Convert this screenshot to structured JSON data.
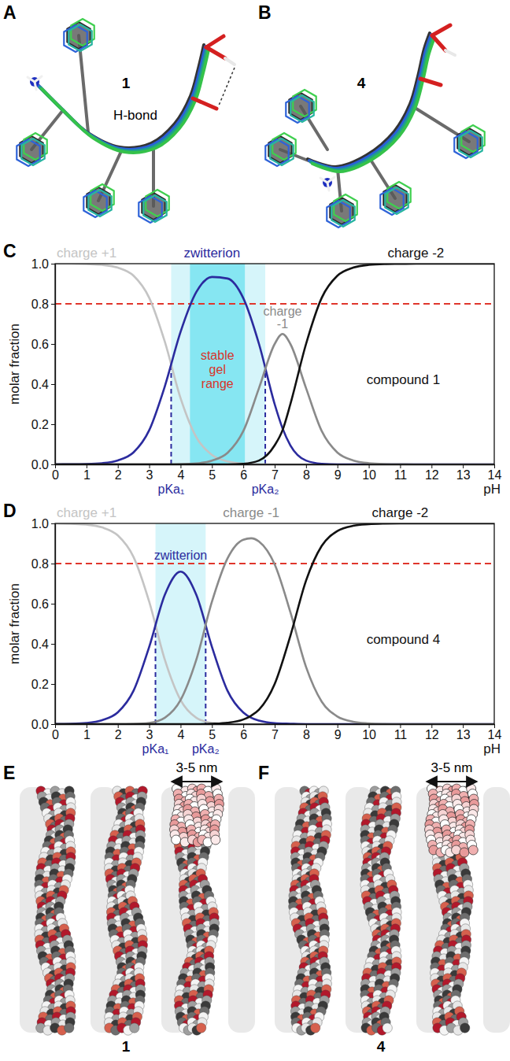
{
  "chart_data": [
    {
      "panel": "C",
      "type": "line",
      "xlabel": "pH",
      "ylabel": "molar fraction",
      "grid": false,
      "x": [
        0,
        0.5,
        1,
        1.5,
        2,
        2.5,
        3,
        3.5,
        4,
        4.5,
        5,
        5.5,
        6,
        6.5,
        7,
        7.25,
        7.5,
        8,
        8.5,
        9,
        9.5,
        10,
        10.5,
        11,
        11.5,
        12,
        12.5,
        13,
        13.5,
        14
      ],
      "xlim": [
        0,
        14
      ],
      "ylim": [
        0,
        1
      ],
      "xticks": [
        0,
        1,
        2,
        3,
        4,
        5,
        6,
        7,
        8,
        9,
        10,
        11,
        12,
        13,
        14
      ],
      "yticks": [
        {
          "value": 0,
          "label": "0.0"
        },
        {
          "value": 0.2,
          "label": "0.2"
        },
        {
          "value": 0.4,
          "label": "0.4"
        },
        {
          "value": 0.6,
          "label": "0.6"
        },
        {
          "value": 0.8,
          "label": "0.8"
        },
        {
          "value": 1,
          "label": "1.0"
        }
      ],
      "series": [
        {
          "name": "charge +1",
          "color": "#c4c4c4",
          "values": [
            1,
            1,
            0.998,
            0.994,
            0.98,
            0.94,
            0.83,
            0.61,
            0.33,
            0.136,
            0.047,
            0.015,
            0.004,
            0.001,
            0,
            0,
            0,
            0,
            0,
            0,
            0,
            0,
            0,
            0,
            0,
            0,
            0,
            0,
            0,
            0
          ]
        },
        {
          "name": "zwitterion",
          "color": "#2b2b9e",
          "values": [
            0,
            0.001,
            0.002,
            0.006,
            0.02,
            0.06,
            0.17,
            0.39,
            0.66,
            0.858,
            0.934,
            0.926,
            0.828,
            0.6,
            0.3,
            0.18,
            0.095,
            0.019,
            0.003,
            0,
            0,
            0,
            0,
            0,
            0,
            0,
            0,
            0,
            0,
            0
          ]
        },
        {
          "name": "charge -1",
          "color": "#8a8a8a",
          "values": [
            0,
            0,
            0,
            0,
            0,
            0,
            0,
            0,
            0.001,
            0.005,
            0.019,
            0.058,
            0.166,
            0.38,
            0.6,
            0.65,
            0.6,
            0.38,
            0.166,
            0.059,
            0.02,
            0.006,
            0.002,
            0.001,
            0,
            0,
            0,
            0,
            0,
            0
          ]
        },
        {
          "name": "charge -2",
          "color": "#111111",
          "values": [
            0,
            0,
            0,
            0,
            0,
            0,
            0,
            0,
            0,
            0,
            0,
            0,
            0.003,
            0.019,
            0.095,
            0.17,
            0.3,
            0.6,
            0.83,
            0.94,
            0.98,
            0.994,
            0.998,
            0.999,
            1,
            1,
            1,
            1,
            1,
            1
          ]
        }
      ],
      "shaded_ranges": [
        {
          "from": 3.7,
          "to": 6.7,
          "color": "#d6f5fa"
        },
        {
          "from": 4.3,
          "to": 6.05,
          "color": "#86e6f2",
          "text": "stable gel range"
        }
      ],
      "reference_lines": [
        {
          "y": 0.8,
          "color": "#e0362c",
          "line_style": "dashed"
        }
      ],
      "pka": [
        {
          "label": "pKa₁",
          "value": 3.7,
          "color": "#2b2b9e"
        },
        {
          "label": "pKa₂",
          "value": 6.7,
          "color": "#2b2b9e"
        }
      ],
      "annotations": [
        {
          "text": "compound 1",
          "x": 11.1,
          "y": 0.4
        }
      ]
    },
    {
      "panel": "D",
      "type": "line",
      "xlabel": "pH",
      "ylabel": "molar fraction",
      "grid": false,
      "x": [
        0,
        0.5,
        1,
        1.5,
        2,
        2.5,
        3,
        3.5,
        4,
        4.5,
        5,
        5.5,
        6,
        6.25,
        6.5,
        7,
        7.5,
        8,
        8.5,
        9,
        9.5,
        10,
        10.5,
        11,
        11.5,
        12,
        12.5,
        13,
        13.5,
        14
      ],
      "xlim": [
        0,
        14
      ],
      "ylim": [
        0,
        1
      ],
      "xticks": [
        0,
        1,
        2,
        3,
        4,
        5,
        6,
        7,
        8,
        9,
        10,
        11,
        12,
        13,
        14
      ],
      "yticks": [
        {
          "value": 0,
          "label": "0.0"
        },
        {
          "value": 0.2,
          "label": "0.2"
        },
        {
          "value": 0.4,
          "label": "0.4"
        },
        {
          "value": 0.6,
          "label": "0.6"
        },
        {
          "value": 0.8,
          "label": "0.8"
        },
        {
          "value": 1,
          "label": "1.0"
        }
      ],
      "series": [
        {
          "name": "charge +1",
          "color": "#c4c4c4",
          "values": [
            1,
            0.998,
            0.994,
            0.98,
            0.94,
            0.833,
            0.61,
            0.32,
            0.12,
            0.032,
            0.006,
            0.001,
            0,
            0,
            0,
            0,
            0,
            0,
            0,
            0,
            0,
            0,
            0,
            0,
            0,
            0,
            0,
            0,
            0,
            0
          ]
        },
        {
          "name": "zwitterion",
          "color": "#2b2b9e",
          "values": [
            0.001,
            0.002,
            0.006,
            0.02,
            0.059,
            0.166,
            0.385,
            0.645,
            0.76,
            0.645,
            0.385,
            0.165,
            0.058,
            0.032,
            0.018,
            0.005,
            0.002,
            0,
            0,
            0,
            0,
            0,
            0,
            0,
            0,
            0,
            0,
            0,
            0,
            0
          ]
        },
        {
          "name": "charge -1",
          "color": "#8a8a8a",
          "values": [
            0,
            0,
            0,
            0,
            0,
            0.001,
            0.006,
            0.032,
            0.12,
            0.32,
            0.61,
            0.827,
            0.919,
            0.926,
            0.91,
            0.796,
            0.558,
            0.285,
            0.112,
            0.038,
            0.012,
            0.004,
            0.001,
            0,
            0,
            0,
            0,
            0,
            0,
            0
          ]
        },
        {
          "name": "charge -2",
          "color": "#111111",
          "values": [
            0,
            0,
            0,
            0,
            0,
            0,
            0,
            0,
            0,
            0,
            0.002,
            0.007,
            0.023,
            0.042,
            0.072,
            0.2,
            0.44,
            0.715,
            0.888,
            0.962,
            0.988,
            0.996,
            0.999,
            1,
            1,
            1,
            1,
            1,
            1,
            1
          ]
        }
      ],
      "shaded_ranges": [
        {
          "from": 3.2,
          "to": 4.8,
          "color": "#d6f5fa"
        }
      ],
      "reference_lines": [
        {
          "y": 0.8,
          "color": "#e0362c",
          "line_style": "dashed"
        }
      ],
      "pka": [
        {
          "label": "pKa₁",
          "value": 3.2,
          "color": "#2b2b9e"
        },
        {
          "label": "pKa₂",
          "value": 4.8,
          "color": "#2b2b9e"
        }
      ],
      "annotations": [
        {
          "text": "compound 4",
          "x": 11.1,
          "y": 0.4
        }
      ]
    }
  ],
  "structures": [
    {
      "panel": "A",
      "compound": "1",
      "annotation": "H-bond"
    },
    {
      "panel": "B",
      "compound": "4"
    }
  ],
  "fibrils": [
    {
      "panel": "E",
      "compound": "1",
      "width_label": "3-5 nm"
    },
    {
      "panel": "F",
      "compound": "4",
      "width_label": "3-5 nm"
    }
  ]
}
